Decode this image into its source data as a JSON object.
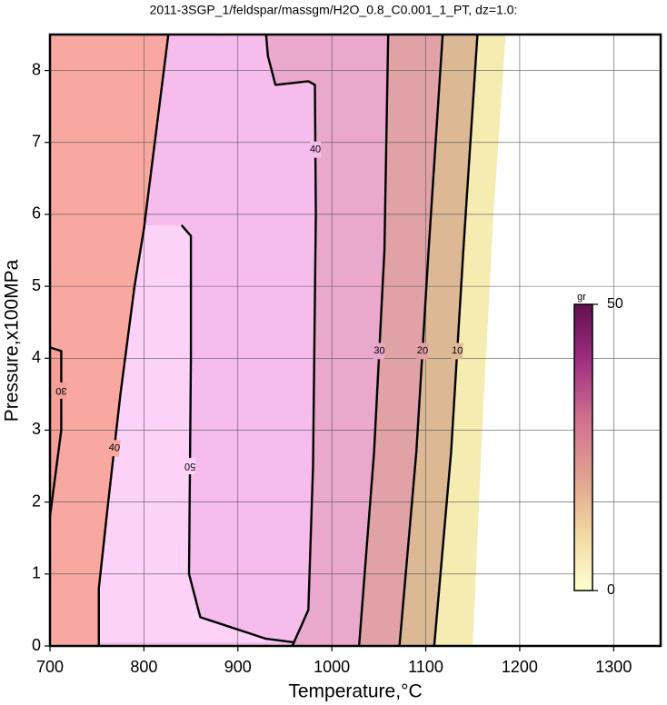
{
  "chart_data": {
    "type": "contour",
    "title": "2011-3SGP_1/feldspar/massgm/H2O_0.8_C0.001_1_PT, dz=1.0:",
    "x_label": "Temperature,°C",
    "y_label": "Pressure,x100MPa",
    "xlim": [
      700,
      1350
    ],
    "ylim": [
      0,
      8.5
    ],
    "xticks": [
      700,
      800,
      900,
      1000,
      1100,
      1200,
      1300
    ],
    "yticks": [
      0,
      1,
      2,
      3,
      4,
      5,
      6,
      7,
      8
    ],
    "grid": true,
    "contours": [
      {
        "level": 0,
        "line": false,
        "color": "#f4ecb0",
        "x": [
          1150,
          1160,
          1172,
          1185
        ],
        "y": [
          0,
          3,
          6,
          8.5
        ]
      },
      {
        "level": 10,
        "line": true,
        "color": "#dcb894",
        "x": [
          1109,
          1127,
          1140,
          1155
        ],
        "y": [
          0,
          2.7,
          5.5,
          8.5
        ]
      },
      {
        "level": 20,
        "line": true,
        "color": "#e0a2a6",
        "x": [
          1072,
          1090,
          1103,
          1118
        ],
        "y": [
          0,
          2.7,
          5.5,
          8.5
        ]
      },
      {
        "level": 30,
        "line": true,
        "color": "#eaa8cc",
        "x": [
          1029,
          1045,
          1056,
          1060
        ],
        "y": [
          0,
          2.7,
          5.5,
          8.5
        ]
      },
      {
        "level": 40,
        "line": true,
        "color": "#f6bcec",
        "x": [
          958,
          975,
          980,
          983,
          982,
          975,
          940,
          932,
          930
        ],
        "y": [
          0,
          0.5,
          2.5,
          6,
          7.8,
          7.85,
          7.8,
          8.2,
          8.5
        ]
      },
      {
        "level": 50,
        "line": true,
        "color": "#fcd2f8",
        "x": [
          840,
          850,
          850,
          848,
          860,
          930,
          960
        ],
        "y": [
          5.85,
          5.7,
          4,
          1,
          0.4,
          0.1,
          0.05
        ]
      },
      {
        "level": 40,
        "line": true,
        "color": "#f8a8a0",
        "x": [
          752,
          752,
          762,
          775,
          790,
          800,
          826
        ],
        "y": [
          0,
          0.8,
          2,
          3.5,
          5,
          5.8,
          8.5
        ]
      },
      {
        "level": 30,
        "line": true,
        "color": "#f4a098",
        "x": [
          700,
          712,
          712,
          700
        ],
        "y": [
          4.15,
          4.1,
          3,
          1.8
        ]
      }
    ],
    "colorbar": {
      "label": "gr",
      "lim": [
        0,
        50
      ],
      "ticks": [
        0,
        50
      ],
      "colors": [
        "#ffffd0",
        "#f0d8a0",
        "#e0a090",
        "#d07090",
        "#a03080",
        "#601050"
      ]
    }
  }
}
